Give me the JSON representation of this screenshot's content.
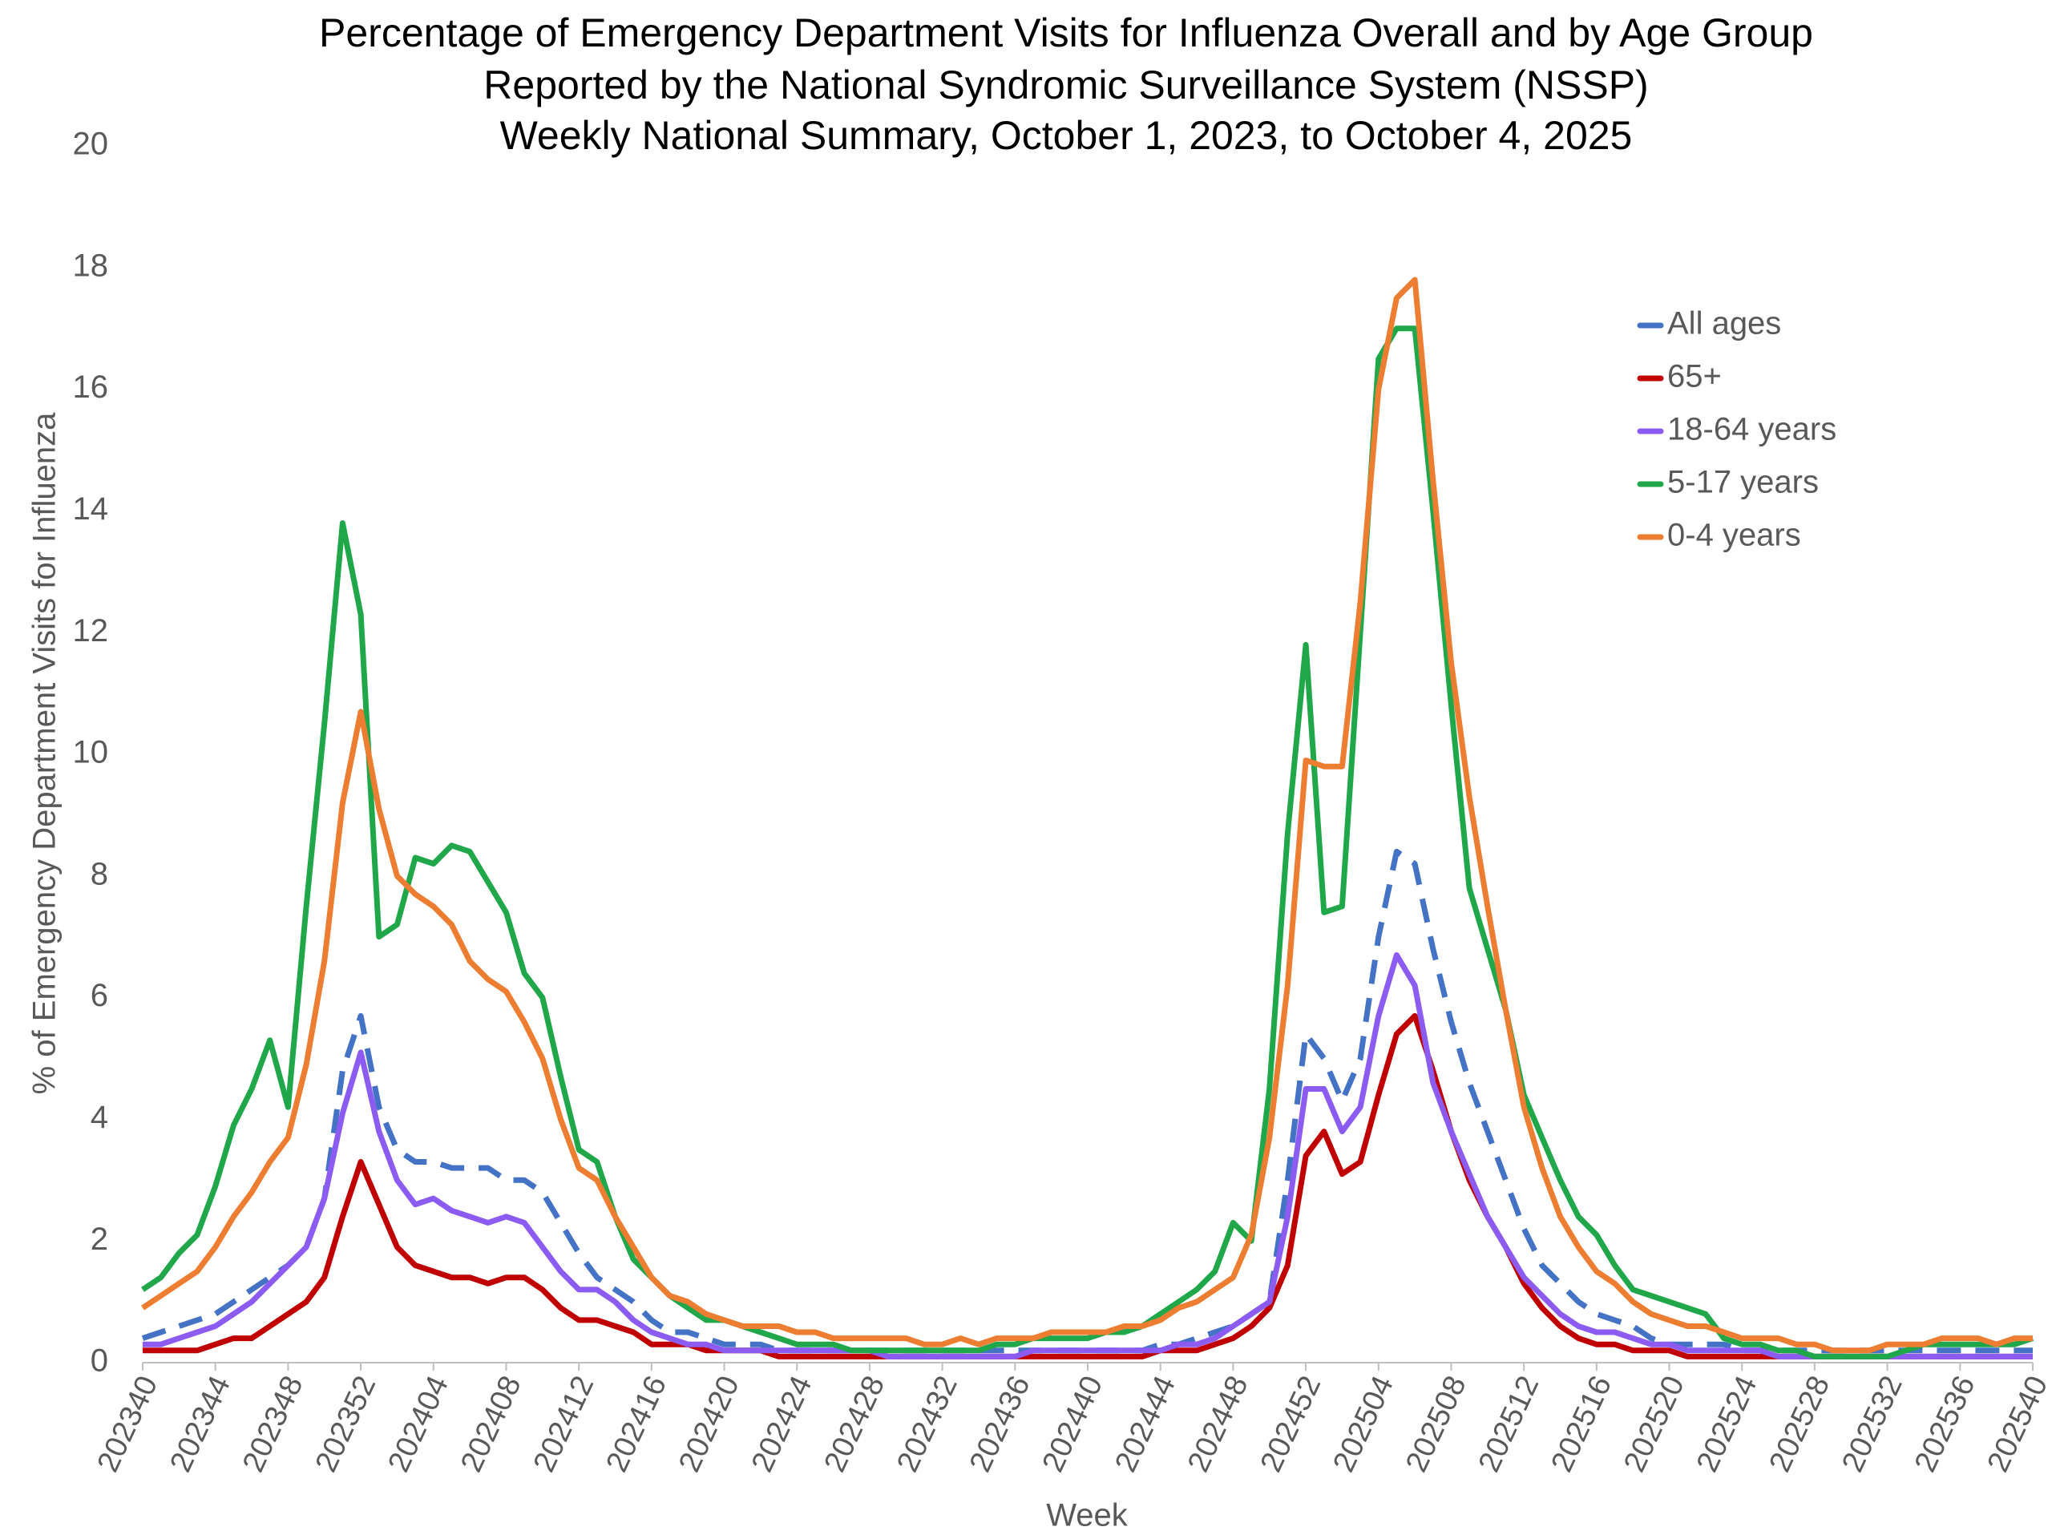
{
  "chart_data": {
    "type": "line",
    "title": [
      "Percentage of Emergency Department Visits for Influenza Overall and by Age Group",
      "Reported by the National Syndromic Surveillance System (NSSP)",
      "Weekly National Summary, October 1, 2023, to  October 4, 2025"
    ],
    "x_label": "Week",
    "y_label": "% of Emergency Department Visits for Influenza",
    "categories": [
      "202340",
      null,
      null,
      null,
      "202344",
      null,
      null,
      null,
      "202348",
      null,
      null,
      null,
      "202352",
      null,
      null,
      null,
      "202404",
      null,
      null,
      null,
      "202408",
      null,
      null,
      null,
      "202412",
      null,
      null,
      null,
      "202416",
      null,
      null,
      null,
      "202420",
      null,
      null,
      null,
      "202424",
      null,
      null,
      null,
      "202428",
      null,
      null,
      null,
      "202432",
      null,
      null,
      null,
      "202436",
      null,
      null,
      null,
      "202440",
      null,
      null,
      null,
      "202444",
      null,
      null,
      null,
      "202448",
      null,
      null,
      null,
      "202452",
      null,
      null,
      null,
      "202504",
      null,
      null,
      null,
      "202508",
      null,
      null,
      null,
      "202512",
      null,
      null,
      null,
      "202516",
      null,
      null,
      null,
      "202520",
      null,
      null,
      null,
      "202524",
      null,
      null,
      null,
      "202528",
      null,
      null,
      null,
      "202532",
      null,
      null,
      null,
      "202536",
      null,
      null,
      null,
      "202540"
    ],
    "ylim": [
      0,
      20
    ],
    "yticks": [
      0,
      2,
      4,
      6,
      8,
      10,
      12,
      14,
      16,
      18,
      20
    ],
    "grid": false,
    "legend": "upper right",
    "series": [
      {
        "name": "All ages",
        "color": "#4472c4",
        "dashed": true,
        "values": [
          0.4,
          0.5,
          0.6,
          0.7,
          0.8,
          1.0,
          1.2,
          1.4,
          1.6,
          1.9,
          2.7,
          4.8,
          5.7,
          4.2,
          3.5,
          3.3,
          3.3,
          3.2,
          3.2,
          3.2,
          3.0,
          3.0,
          2.8,
          2.3,
          1.8,
          1.4,
          1.2,
          1.0,
          0.7,
          0.5,
          0.5,
          0.4,
          0.3,
          0.3,
          0.3,
          0.2,
          0.2,
          0.2,
          0.2,
          0.2,
          0.2,
          0.2,
          0.2,
          0.2,
          0.2,
          0.2,
          0.2,
          0.2,
          0.2,
          0.2,
          0.2,
          0.2,
          0.2,
          0.2,
          0.2,
          0.2,
          0.3,
          0.3,
          0.4,
          0.5,
          0.6,
          0.8,
          1.0,
          3.0,
          5.4,
          5.0,
          4.3,
          5.0,
          7.0,
          8.4,
          8.2,
          6.8,
          5.6,
          4.6,
          3.8,
          3.0,
          2.2,
          1.6,
          1.3,
          1.0,
          0.8,
          0.7,
          0.6,
          0.4,
          0.3,
          0.3,
          0.3,
          0.3,
          0.2,
          0.2,
          0.2,
          0.2,
          0.2,
          0.2,
          0.2,
          0.2,
          0.2,
          0.2,
          0.2,
          0.2,
          0.2,
          0.2,
          0.2,
          0.2,
          0.2
        ]
      },
      {
        "name": "65+",
        "color": "#c00000",
        "dashed": false,
        "values": [
          0.2,
          0.2,
          0.2,
          0.2,
          0.3,
          0.4,
          0.4,
          0.6,
          0.8,
          1.0,
          1.4,
          2.4,
          3.3,
          2.6,
          1.9,
          1.6,
          1.5,
          1.4,
          1.4,
          1.3,
          1.4,
          1.4,
          1.2,
          0.9,
          0.7,
          0.7,
          0.6,
          0.5,
          0.3,
          0.3,
          0.3,
          0.2,
          0.2,
          0.2,
          0.2,
          0.1,
          0.1,
          0.1,
          0.1,
          0.1,
          0.1,
          0.1,
          0.1,
          0.1,
          0.1,
          0.1,
          0.1,
          0.1,
          0.1,
          0.1,
          0.1,
          0.1,
          0.1,
          0.1,
          0.1,
          0.1,
          0.2,
          0.2,
          0.2,
          0.3,
          0.4,
          0.6,
          0.9,
          1.6,
          3.4,
          3.8,
          3.1,
          3.3,
          4.4,
          5.4,
          5.7,
          4.8,
          3.8,
          3.0,
          2.4,
          1.9,
          1.3,
          0.9,
          0.6,
          0.4,
          0.3,
          0.3,
          0.2,
          0.2,
          0.2,
          0.1,
          0.1,
          0.1,
          0.1,
          0.1,
          0.1,
          0.1,
          0.1,
          0.1,
          0.1,
          0.1,
          0.1,
          0.1,
          0.1,
          0.1,
          0.1,
          0.1,
          0.1,
          0.1,
          0.1
        ]
      },
      {
        "name": "18-64 years",
        "color": "#8c5cf2",
        "dashed": false,
        "values": [
          0.3,
          0.3,
          0.4,
          0.5,
          0.6,
          0.8,
          1.0,
          1.3,
          1.6,
          1.9,
          2.7,
          4.1,
          5.1,
          3.8,
          3.0,
          2.6,
          2.7,
          2.5,
          2.4,
          2.3,
          2.4,
          2.3,
          1.9,
          1.5,
          1.2,
          1.2,
          1.0,
          0.7,
          0.5,
          0.4,
          0.3,
          0.3,
          0.2,
          0.2,
          0.2,
          0.2,
          0.2,
          0.2,
          0.2,
          0.2,
          0.2,
          0.1,
          0.1,
          0.1,
          0.1,
          0.1,
          0.1,
          0.1,
          0.1,
          0.2,
          0.2,
          0.2,
          0.2,
          0.2,
          0.2,
          0.2,
          0.2,
          0.3,
          0.3,
          0.4,
          0.6,
          0.8,
          1.0,
          2.4,
          4.5,
          4.5,
          3.8,
          4.2,
          5.7,
          6.7,
          6.2,
          4.6,
          3.8,
          3.1,
          2.4,
          1.9,
          1.4,
          1.1,
          0.8,
          0.6,
          0.5,
          0.5,
          0.4,
          0.3,
          0.3,
          0.2,
          0.2,
          0.2,
          0.2,
          0.2,
          0.1,
          0.1,
          0.1,
          0.1,
          0.1,
          0.1,
          0.1,
          0.1,
          0.1,
          0.1,
          0.1,
          0.1,
          0.1,
          0.1,
          0.1
        ]
      },
      {
        "name": "5-17 years",
        "color": "#1fa74a",
        "dashed": false,
        "values": [
          1.2,
          1.4,
          1.8,
          2.1,
          2.9,
          3.9,
          4.5,
          5.3,
          4.2,
          7.5,
          10.5,
          13.8,
          12.3,
          7.0,
          7.2,
          8.3,
          8.2,
          8.5,
          8.4,
          7.9,
          7.4,
          6.4,
          6.0,
          4.7,
          3.5,
          3.3,
          2.4,
          1.7,
          1.4,
          1.1,
          0.9,
          0.7,
          0.7,
          0.6,
          0.5,
          0.4,
          0.3,
          0.3,
          0.3,
          0.2,
          0.2,
          0.2,
          0.2,
          0.2,
          0.2,
          0.2,
          0.2,
          0.3,
          0.3,
          0.4,
          0.4,
          0.4,
          0.4,
          0.5,
          0.5,
          0.6,
          0.8,
          1.0,
          1.2,
          1.5,
          2.3,
          2.0,
          4.5,
          8.7,
          11.8,
          7.4,
          7.5,
          12.0,
          16.5,
          17.0,
          17.0,
          14.0,
          10.8,
          7.8,
          6.8,
          5.8,
          4.4,
          3.7,
          3.0,
          2.4,
          2.1,
          1.6,
          1.2,
          1.1,
          1.0,
          0.9,
          0.8,
          0.4,
          0.3,
          0.3,
          0.2,
          0.2,
          0.1,
          0.1,
          0.1,
          0.1,
          0.1,
          0.2,
          0.3,
          0.3,
          0.3,
          0.3,
          0.3,
          0.3,
          0.4
        ]
      },
      {
        "name": "0-4 years",
        "color": "#ed7d31",
        "dashed": false,
        "values": [
          0.9,
          1.1,
          1.3,
          1.5,
          1.9,
          2.4,
          2.8,
          3.3,
          3.7,
          4.9,
          6.6,
          9.2,
          10.7,
          9.1,
          8.0,
          7.7,
          7.5,
          7.2,
          6.6,
          6.3,
          6.1,
          5.6,
          5.0,
          4.0,
          3.2,
          3.0,
          2.4,
          1.9,
          1.4,
          1.1,
          1.0,
          0.8,
          0.7,
          0.6,
          0.6,
          0.6,
          0.5,
          0.5,
          0.4,
          0.4,
          0.4,
          0.4,
          0.4,
          0.3,
          0.3,
          0.4,
          0.3,
          0.4,
          0.4,
          0.4,
          0.5,
          0.5,
          0.5,
          0.5,
          0.6,
          0.6,
          0.7,
          0.9,
          1.0,
          1.2,
          1.4,
          2.1,
          3.7,
          6.2,
          9.9,
          9.8,
          9.8,
          12.5,
          16.0,
          17.5,
          17.8,
          14.5,
          11.5,
          9.3,
          7.5,
          5.8,
          4.2,
          3.2,
          2.4,
          1.9,
          1.5,
          1.3,
          1.0,
          0.8,
          0.7,
          0.6,
          0.6,
          0.5,
          0.4,
          0.4,
          0.4,
          0.3,
          0.3,
          0.2,
          0.2,
          0.2,
          0.3,
          0.3,
          0.3,
          0.4,
          0.4,
          0.4,
          0.3,
          0.4,
          0.4
        ]
      }
    ]
  }
}
